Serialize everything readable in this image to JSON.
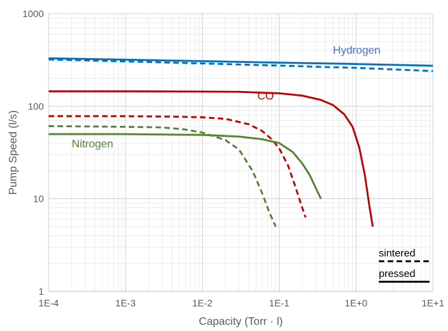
{
  "chart_data": {
    "type": "line",
    "title": "",
    "xlabel": "Capacity (Torr · l)",
    "ylabel": "Pump Speed (l/s)",
    "xscale": "log",
    "yscale": "log",
    "xlim": [
      0.0001,
      10
    ],
    "ylim": [
      1,
      1000
    ],
    "grid": true,
    "x_tick_labels": [
      "1E-4",
      "1E-3",
      "1E-2",
      "1E-1",
      "1E+0",
      "1E+1"
    ],
    "y_tick_labels": [
      "1",
      "10",
      "100",
      "1000"
    ],
    "legend": {
      "placement": "bottom-right",
      "entries": [
        {
          "label": "sintered",
          "style": "dashed"
        },
        {
          "label": "pressed",
          "style": "solid"
        }
      ]
    },
    "series_labels": [
      {
        "text": "Hydrogen",
        "color": "#4472C4",
        "x": 0.5,
        "y": 370
      },
      {
        "text": "CO",
        "color": "#C00000",
        "x": 0.052,
        "y": 118
      },
      {
        "text": "Nitrogen",
        "color": "#548235",
        "x": 0.0002,
        "y": 36
      }
    ],
    "series": [
      {
        "gas": "Hydrogen",
        "type": "pressed",
        "color": "#0070C0",
        "dashed": false,
        "x": [
          0.0001,
          0.001,
          0.01,
          0.1,
          1,
          10
        ],
        "y": [
          330,
          318,
          307,
          296,
          286,
          274
        ]
      },
      {
        "gas": "Hydrogen",
        "type": "sintered",
        "color": "#0070C0",
        "dashed": true,
        "x": [
          0.0001,
          0.001,
          0.01,
          0.1,
          1,
          10
        ],
        "y": [
          320,
          305,
          290,
          275,
          260,
          240
        ]
      },
      {
        "gas": "CO",
        "type": "pressed",
        "color": "#C00000",
        "dashed": false,
        "x": [
          0.0001,
          0.001,
          0.01,
          0.03,
          0.1,
          0.2,
          0.35,
          0.5,
          0.7,
          0.9,
          1.1,
          1.3,
          1.5,
          1.65
        ],
        "y": [
          145,
          145,
          144,
          143,
          138,
          130,
          117,
          103,
          82,
          60,
          36,
          18,
          8,
          5
        ]
      },
      {
        "gas": "CO",
        "type": "sintered",
        "color": "#C00000",
        "dashed": true,
        "x": [
          0.0001,
          0.001,
          0.005,
          0.01,
          0.02,
          0.04,
          0.06,
          0.08,
          0.1,
          0.13,
          0.16,
          0.19,
          0.22
        ],
        "y": [
          78,
          78,
          77,
          76,
          73,
          64,
          54,
          44,
          35,
          23,
          14,
          9,
          6.3
        ]
      },
      {
        "gas": "Nitrogen",
        "type": "pressed",
        "color": "#548235",
        "dashed": false,
        "x": [
          0.0001,
          0.001,
          0.01,
          0.03,
          0.06,
          0.1,
          0.15,
          0.2,
          0.25,
          0.3,
          0.35
        ],
        "y": [
          50,
          50,
          49,
          47,
          44,
          40,
          32,
          24,
          18,
          13,
          10
        ]
      },
      {
        "gas": "Nitrogen",
        "type": "sintered",
        "color": "#548235",
        "dashed": true,
        "x": [
          0.0001,
          0.001,
          0.003,
          0.006,
          0.01,
          0.02,
          0.03,
          0.045,
          0.06,
          0.075,
          0.09
        ],
        "y": [
          61,
          60,
          59,
          56,
          52,
          43,
          34,
          20,
          11.5,
          7,
          5
        ]
      }
    ]
  }
}
